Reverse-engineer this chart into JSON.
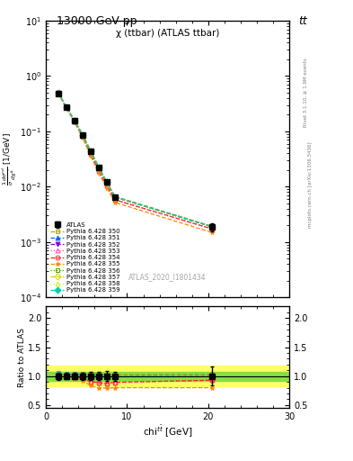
{
  "title_top": "13000 GeV pp",
  "title_top_right": "tt",
  "plot_title": "χ (ttbar) (ATLAS ttbar)",
  "watermark": "ATLAS_2020_I1801434",
  "right_label_top": "Rivet 3.1.10, ≥ 1.9M events",
  "right_label_bottom": "mcplots.cern.ch [arXiv:1306.3436]",
  "ylabel_main": "$\\frac{1}{\\sigma}\\frac{d\\sigma^{nd}}{d\\chi^{t\\bar{t}}}$ [1/GeV]",
  "ylabel_ratio": "Ratio to ATLAS",
  "xlabel": "chi$^{t\\bar{t}}$ [GeV]",
  "xlim": [
    0,
    30
  ],
  "ylim_main": [
    0.0001,
    10
  ],
  "ylim_ratio": [
    0.45,
    2.2
  ],
  "ratio_yticks": [
    0.5,
    1.0,
    1.5,
    2.0
  ],
  "atlas_x": [
    1.5,
    2.5,
    3.5,
    4.5,
    5.5,
    6.5,
    7.5,
    8.5,
    20.5
  ],
  "atlas_y": [
    0.48,
    0.27,
    0.155,
    0.085,
    0.043,
    0.022,
    0.012,
    0.0065,
    0.00185
  ],
  "atlas_yerr": [
    0.03,
    0.015,
    0.009,
    0.005,
    0.003,
    0.0015,
    0.001,
    0.0005,
    0.0003
  ],
  "series": [
    {
      "label": "Pythia 6.428 350",
      "color": "#aaaa00",
      "linestyle": "--",
      "marker": "s",
      "fillstyle": "none",
      "y": [
        0.5,
        0.278,
        0.16,
        0.089,
        0.045,
        0.0228,
        0.0123,
        0.00668,
        0.00192
      ],
      "ratio": [
        1.04,
        1.03,
        1.03,
        1.05,
        1.05,
        1.04,
        1.025,
        1.028,
        1.038
      ]
    },
    {
      "label": "Pythia 6.428 351",
      "color": "#0066ff",
      "linestyle": "--",
      "marker": "^",
      "fillstyle": "full",
      "y": [
        0.5,
        0.276,
        0.158,
        0.087,
        0.044,
        0.0222,
        0.012,
        0.0065,
        0.00188
      ],
      "ratio": [
        1.04,
        1.022,
        1.019,
        1.024,
        1.023,
        1.009,
        1.0,
        1.0,
        1.016
      ]
    },
    {
      "label": "Pythia 6.428 352",
      "color": "#8800cc",
      "linestyle": "--",
      "marker": "v",
      "fillstyle": "full",
      "y": [
        0.5,
        0.276,
        0.158,
        0.087,
        0.044,
        0.0222,
        0.012,
        0.0065,
        0.00188
      ],
      "ratio": [
        1.04,
        1.022,
        1.019,
        1.024,
        1.023,
        1.009,
        1.0,
        1.0,
        1.016
      ]
    },
    {
      "label": "Pythia 6.428 353",
      "color": "#ff44bb",
      "linestyle": ":",
      "marker": "^",
      "fillstyle": "none",
      "y": [
        0.5,
        0.271,
        0.152,
        0.082,
        0.039,
        0.0195,
        0.0105,
        0.0058,
        0.00172
      ],
      "ratio": [
        1.04,
        1.004,
        0.981,
        0.965,
        0.907,
        0.886,
        0.875,
        0.892,
        0.93
      ]
    },
    {
      "label": "Pythia 6.428 354",
      "color": "#ff2222",
      "linestyle": "--",
      "marker": "o",
      "fillstyle": "none",
      "y": [
        0.5,
        0.271,
        0.152,
        0.082,
        0.039,
        0.0195,
        0.0105,
        0.0058,
        0.00172
      ],
      "ratio": [
        1.04,
        1.004,
        0.981,
        0.965,
        0.907,
        0.886,
        0.875,
        0.892,
        0.93
      ]
    },
    {
      "label": "Pythia 6.428 355",
      "color": "#ff8800",
      "linestyle": "--",
      "marker": "*",
      "fillstyle": "full",
      "y": [
        0.5,
        0.268,
        0.148,
        0.078,
        0.036,
        0.0175,
        0.0095,
        0.0052,
        0.00148
      ],
      "ratio": [
        1.04,
        0.993,
        0.955,
        0.918,
        0.837,
        0.795,
        0.792,
        0.8,
        0.8
      ]
    },
    {
      "label": "Pythia 6.428 356",
      "color": "#44aa00",
      "linestyle": ":",
      "marker": "s",
      "fillstyle": "none",
      "y": [
        0.5,
        0.276,
        0.158,
        0.087,
        0.044,
        0.0222,
        0.012,
        0.0065,
        0.00188
      ],
      "ratio": [
        1.04,
        1.022,
        1.019,
        1.024,
        1.023,
        1.009,
        1.0,
        1.0,
        1.016
      ]
    },
    {
      "label": "Pythia 6.428 357",
      "color": "#ddcc00",
      "linestyle": "--",
      "marker": "D",
      "fillstyle": "none",
      "y": [
        0.5,
        0.276,
        0.158,
        0.087,
        0.044,
        0.0222,
        0.012,
        0.0065,
        0.00188
      ],
      "ratio": [
        1.04,
        1.022,
        1.019,
        1.024,
        1.023,
        1.009,
        1.0,
        1.0,
        1.016
      ]
    },
    {
      "label": "Pythia 6.428 358",
      "color": "#ccee22",
      "linestyle": ":",
      "marker": "^",
      "fillstyle": "none",
      "y": [
        0.5,
        0.276,
        0.158,
        0.087,
        0.044,
        0.0222,
        0.012,
        0.0065,
        0.00188
      ],
      "ratio": [
        1.04,
        1.022,
        1.019,
        1.024,
        1.023,
        1.009,
        1.0,
        1.0,
        1.016
      ]
    },
    {
      "label": "Pythia 6.428 359",
      "color": "#00ccaa",
      "linestyle": "--",
      "marker": "D",
      "fillstyle": "full",
      "y": [
        0.5,
        0.276,
        0.158,
        0.087,
        0.044,
        0.0222,
        0.012,
        0.0065,
        0.00188
      ],
      "ratio": [
        1.04,
        1.022,
        1.019,
        1.024,
        1.023,
        1.009,
        1.0,
        1.0,
        1.016
      ]
    }
  ],
  "band_yellow_lo": 0.82,
  "band_yellow_hi": 1.18,
  "band_green_lo": 0.92,
  "band_green_hi": 1.08,
  "band_yellow_xstart": 0,
  "band_yellow_xend": 30,
  "band_green_xstart": 3,
  "band_green_xend": 30
}
